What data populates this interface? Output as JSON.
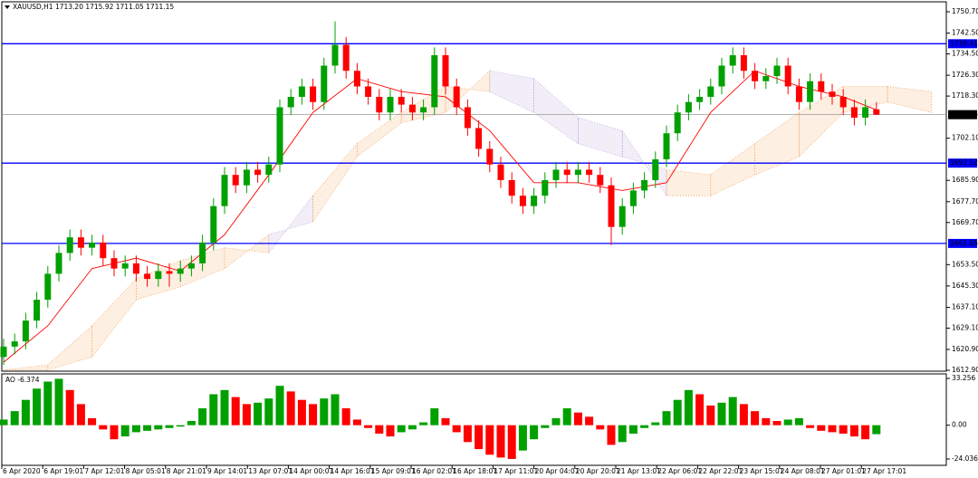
{
  "chart_data": {
    "type": "candlestick",
    "header": "XAUUSD,H1  1713.20 1715.92 1711.05 1711.15",
    "ylim": [
      1612.9,
      1750.7
    ],
    "yticks": [
      {
        "value": 1750.7,
        "label": "1750.70"
      },
      {
        "value": 1742.5,
        "label": "1742.50"
      },
      {
        "value": 1734.5,
        "label": "1734.50"
      },
      {
        "value": 1726.3,
        "label": "1726.30"
      },
      {
        "value": 1718.3,
        "label": "1718.30"
      },
      {
        "value": 1702.1,
        "label": "1702.10"
      },
      {
        "value": 1685.9,
        "label": "1685.90"
      },
      {
        "value": 1677.7,
        "label": "1677.70"
      },
      {
        "value": 1669.7,
        "label": "1669.70"
      },
      {
        "value": 1653.5,
        "label": "1653.50"
      },
      {
        "value": 1645.3,
        "label": "1645.30"
      },
      {
        "value": 1637.1,
        "label": "1637.10"
      },
      {
        "value": 1629.1,
        "label": "1629.10"
      },
      {
        "value": 1620.9,
        "label": "1620.90"
      },
      {
        "value": 1612.9,
        "label": "1612.90"
      }
    ],
    "time_labels": [
      "6 Apr 2020",
      "6 Apr 19:01",
      "7 Apr 12:01",
      "8 Apr 05:01",
      "8 Apr 21:01",
      "9 Apr 14:01",
      "13 Apr 07:01",
      "14 Apr 00:01",
      "14 Apr 16:01",
      "15 Apr 09:01",
      "16 Apr 02:01",
      "16 Apr 18:01",
      "17 Apr 11:01",
      "20 Apr 04:01",
      "20 Apr 20:01",
      "21 Apr 13:01",
      "22 Apr 06:01",
      "22 Apr 22:01",
      "23 Apr 15:01",
      "24 Apr 08:01",
      "27 Apr 01:01",
      "27 Apr 17:01"
    ],
    "up_color": "#00a000",
    "down_color": "#ff0000",
    "open": [
      1618,
      1622,
      1624,
      1632,
      1640,
      1650,
      1658,
      1664,
      1660,
      1662,
      1656,
      1652,
      1654,
      1650,
      1648,
      1651,
      1650,
      1652,
      1654,
      1662,
      1676,
      1688,
      1684,
      1690,
      1688,
      1692,
      1714,
      1718,
      1722,
      1716,
      1730,
      1738,
      1728,
      1722,
      1718,
      1712,
      1718,
      1715,
      1712,
      1714,
      1734,
      1722,
      1714,
      1706,
      1698,
      1692,
      1686,
      1680,
      1676,
      1680,
      1686,
      1690,
      1688,
      1690,
      1688,
      1684,
      1668,
      1676,
      1682,
      1686,
      1694,
      1704,
      1712,
      1716,
      1718,
      1722,
      1730,
      1734,
      1728,
      1724,
      1726,
      1730,
      1722,
      1716,
      1724,
      1720,
      1718,
      1714,
      1710,
      1713.2
    ],
    "high": [
      1625,
      1627,
      1635,
      1643,
      1653,
      1661,
      1667,
      1667,
      1665,
      1665,
      1659,
      1657,
      1657,
      1653,
      1654,
      1654,
      1655,
      1657,
      1665,
      1679,
      1691,
      1691,
      1693,
      1693,
      1695,
      1717,
      1721,
      1725,
      1725,
      1733,
      1747,
      1741,
      1731,
      1725,
      1721,
      1721,
      1721,
      1718,
      1717,
      1737,
      1737,
      1725,
      1717,
      1709,
      1701,
      1695,
      1689,
      1683,
      1683,
      1689,
      1693,
      1693,
      1693,
      1693,
      1691,
      1687,
      1679,
      1685,
      1689,
      1697,
      1707,
      1715,
      1719,
      1721,
      1725,
      1733,
      1737,
      1737,
      1731,
      1729,
      1733,
      1733,
      1725,
      1727,
      1727,
      1723,
      1721,
      1717,
      1717,
      1715.92
    ],
    "low": [
      1615,
      1619,
      1621,
      1629,
      1637,
      1647,
      1655,
      1657,
      1657,
      1653,
      1649,
      1649,
      1647,
      1645,
      1645,
      1645,
      1647,
      1649,
      1651,
      1659,
      1673,
      1681,
      1681,
      1685,
      1685,
      1689,
      1711,
      1715,
      1713,
      1713,
      1727,
      1725,
      1719,
      1715,
      1709,
      1709,
      1712,
      1709,
      1709,
      1711,
      1719,
      1711,
      1703,
      1695,
      1689,
      1683,
      1677,
      1673,
      1673,
      1677,
      1683,
      1685,
      1685,
      1685,
      1681,
      1661,
      1665,
      1673,
      1679,
      1683,
      1691,
      1701,
      1709,
      1713,
      1715,
      1719,
      1727,
      1725,
      1721,
      1721,
      1723,
      1719,
      1713,
      1713,
      1717,
      1715,
      1711,
      1707,
      1707,
      1711.05
    ],
    "close": [
      1622,
      1624,
      1632,
      1640,
      1650,
      1658,
      1664,
      1660,
      1662,
      1656,
      1652,
      1654,
      1650,
      1648,
      1651,
      1650,
      1652,
      1654,
      1662,
      1676,
      1688,
      1684,
      1690,
      1688,
      1692,
      1714,
      1718,
      1722,
      1716,
      1730,
      1738,
      1728,
      1722,
      1718,
      1712,
      1718,
      1715,
      1712,
      1714,
      1734,
      1722,
      1714,
      1706,
      1698,
      1692,
      1686,
      1680,
      1676,
      1680,
      1686,
      1690,
      1688,
      1690,
      1688,
      1684,
      1668,
      1676,
      1682,
      1686,
      1694,
      1704,
      1712,
      1716,
      1718,
      1722,
      1730,
      1734,
      1728,
      1724,
      1726,
      1730,
      1722,
      1716,
      1724,
      1720,
      1718,
      1714,
      1710,
      1714,
      1711.15
    ],
    "ma": {
      "color": "#ff0000",
      "x": [
        0,
        4,
        8,
        12,
        16,
        20,
        24,
        28,
        32,
        36,
        40,
        44,
        48,
        52,
        56,
        60,
        64,
        68,
        72,
        76,
        79
      ],
      "values": [
        1616,
        1630,
        1652,
        1656,
        1651,
        1665,
        1688,
        1712,
        1725,
        1720,
        1718,
        1705,
        1685,
        1685,
        1682,
        1685,
        1712,
        1728,
        1722,
        1718,
        1713
      ]
    },
    "cloud": {
      "color_a": "#f4a460",
      "color_b": "#b9a0d8",
      "x": [
        0,
        4,
        8,
        12,
        16,
        20,
        24,
        28,
        32,
        36,
        40,
        44,
        48,
        52,
        56,
        60,
        64,
        68,
        72,
        76,
        80,
        84
      ],
      "span_a": [
        1613,
        1615,
        1630,
        1648,
        1655,
        1660,
        1658,
        1680,
        1700,
        1712,
        1722,
        1720,
        1712,
        1700,
        1695,
        1690,
        1688,
        1700,
        1712,
        1722,
        1722,
        1720
      ],
      "span_b": [
        1613,
        1613,
        1618,
        1640,
        1645,
        1652,
        1665,
        1670,
        1695,
        1708,
        1712,
        1728,
        1725,
        1710,
        1705,
        1680,
        1680,
        1688,
        1695,
        1712,
        1716,
        1712
      ]
    },
    "levels": {
      "color": "#0000ff",
      "values": [
        1738.41,
        1692.52,
        1661.65
      ]
    },
    "last_price": 1711.15,
    "ao": {
      "label": "AO -6.374",
      "ylim": [
        -24.036,
        33.256
      ],
      "yticks": [
        33.256,
        {
          "value": 0,
          "label": "0.00"
        },
        -24.036
      ],
      "values": [
        4,
        10,
        18,
        26,
        31,
        33,
        25,
        15,
        5,
        -3,
        -10,
        -8,
        -5,
        -4,
        -3,
        -2,
        -1,
        3,
        12,
        22,
        25,
        20,
        15,
        16,
        19,
        28,
        24,
        18,
        15,
        19,
        22,
        12,
        4,
        -2,
        -6,
        -8,
        -5,
        -3,
        2,
        12,
        5,
        -5,
        -12,
        -17,
        -21,
        -23,
        -24,
        -18,
        -10,
        -2,
        5,
        12,
        9,
        6,
        -3,
        -14,
        -12,
        -6,
        -2,
        2,
        10,
        18,
        25,
        22,
        14,
        16,
        20,
        15,
        10,
        5,
        3,
        4,
        5,
        -2,
        -4,
        -5,
        -6,
        -8,
        -10,
        -6.374
      ]
    }
  }
}
